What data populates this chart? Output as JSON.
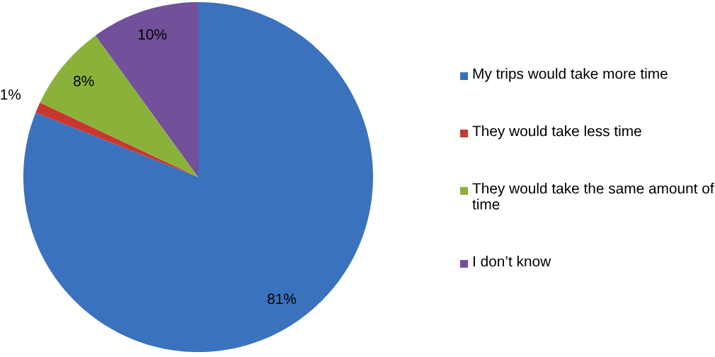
{
  "chart_data": {
    "type": "pie",
    "categories": [
      "My trips would take more time",
      "They would take less time",
      "They would take the same amount of time",
      "I don’t know"
    ],
    "values": [
      81,
      1,
      8,
      10
    ],
    "colors": [
      "#3a72bd",
      "#c8372f",
      "#8ab23a",
      "#72509a"
    ],
    "value_labels": [
      "81%",
      "1%",
      "8%",
      "10%"
    ],
    "legend": "right"
  }
}
